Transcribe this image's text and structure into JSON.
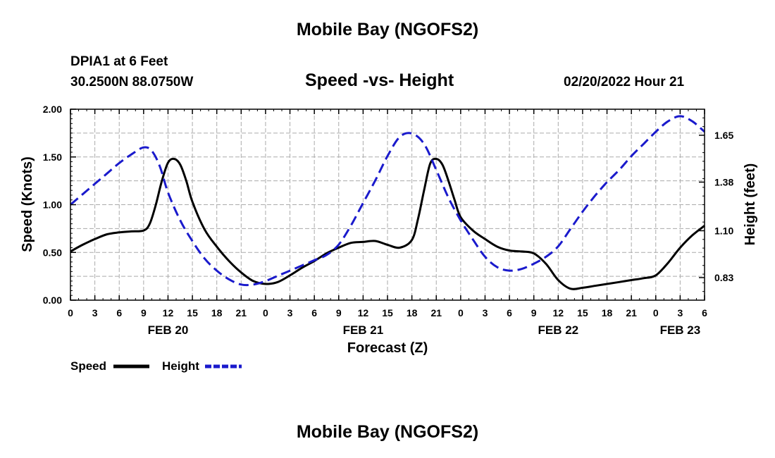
{
  "header": {
    "title": "Mobile Bay (NGOFS2)",
    "station": "DPIA1 at 6 Feet",
    "coords": "30.2500N  88.0750W",
    "chart_title": "Speed -vs- Height",
    "datetime": "02/20/2022 Hour 21",
    "bottom_title": "Mobile Bay (NGOFS2)"
  },
  "colors": {
    "speed": "#000000",
    "height": "#1a1acc",
    "grid": "#aaaaaa"
  },
  "chart_data": {
    "type": "line",
    "title": "Speed -vs- Height",
    "xlabel": "Forecast (Z)",
    "ylabel": "Speed (Knots)",
    "y2label": "Height (feet)",
    "x_unit": "hours since 2022-02-20 00Z",
    "xlim": [
      0,
      78
    ],
    "ylim": [
      0,
      2
    ],
    "y2lim": [
      0.7,
      1.8
    ],
    "y_ticks": [
      0,
      0.5,
      1.0,
      1.5,
      2.0
    ],
    "y_tick_labels": [
      "0.00",
      "0.50",
      "1.00",
      "1.50",
      "2.00"
    ],
    "y2_ticks": [
      0.83,
      1.1,
      1.38,
      1.65
    ],
    "y2_tick_labels": [
      "0.83",
      "1.10",
      "1.38",
      "1.65"
    ],
    "x_ticks": [
      0,
      3,
      6,
      9,
      12,
      15,
      18,
      21,
      24,
      27,
      30,
      33,
      36,
      39,
      42,
      45,
      48,
      51,
      54,
      57,
      60,
      63,
      66,
      69,
      72,
      75,
      78
    ],
    "x_tick_labels": [
      "0",
      "3",
      "6",
      "9",
      "12",
      "15",
      "18",
      "21",
      "0",
      "3",
      "6",
      "9",
      "12",
      "15",
      "18",
      "21",
      "0",
      "3",
      "6",
      "9",
      "12",
      "15",
      "18",
      "21",
      "0",
      "3",
      "6"
    ],
    "date_labels": [
      {
        "x": 12,
        "label": "FEB 20"
      },
      {
        "x": 36,
        "label": "FEB 21"
      },
      {
        "x": 60,
        "label": "FEB 22"
      },
      {
        "x": 75,
        "label": "FEB 23"
      }
    ],
    "legend": [
      {
        "name": "Speed",
        "style": "solid"
      },
      {
        "name": "Height",
        "style": "dashed"
      }
    ],
    "series": [
      {
        "name": "Speed",
        "axis": "left",
        "style": "solid",
        "x": [
          0,
          1.5,
          3,
          4.5,
          6,
          7.5,
          9,
          9.75,
          10.5,
          11.25,
          12,
          12.75,
          13.5,
          14.25,
          15,
          16.5,
          18,
          19.5,
          21,
          22.5,
          24,
          25.5,
          27,
          28.5,
          30,
          31.5,
          33,
          34.5,
          36,
          37.5,
          39,
          40.5,
          42,
          42.75,
          43.5,
          44.25,
          45,
          45.75,
          46.5,
          47.25,
          48,
          49.5,
          51,
          52.5,
          54,
          55.5,
          57,
          58.5,
          60,
          61.5,
          63,
          64.5,
          66,
          67.5,
          69,
          70.5,
          72,
          73.5,
          75,
          76.5,
          78
        ],
        "values": [
          0.51,
          0.58,
          0.64,
          0.69,
          0.71,
          0.72,
          0.73,
          0.8,
          1.0,
          1.25,
          1.44,
          1.48,
          1.42,
          1.25,
          1.03,
          0.74,
          0.56,
          0.41,
          0.29,
          0.2,
          0.17,
          0.19,
          0.26,
          0.34,
          0.41,
          0.49,
          0.55,
          0.6,
          0.61,
          0.62,
          0.58,
          0.55,
          0.63,
          0.85,
          1.15,
          1.43,
          1.48,
          1.42,
          1.25,
          1.05,
          0.87,
          0.73,
          0.64,
          0.56,
          0.52,
          0.51,
          0.49,
          0.38,
          0.21,
          0.12,
          0.13,
          0.15,
          0.17,
          0.19,
          0.21,
          0.23,
          0.26,
          0.39,
          0.55,
          0.68,
          0.78
        ]
      },
      {
        "name": "Height",
        "axis": "right",
        "style": "dashed",
        "x": [
          0,
          1.5,
          3,
          4.5,
          6,
          7.5,
          9,
          10,
          11,
          12,
          13.5,
          15,
          16.5,
          18,
          19.5,
          21,
          22.5,
          24,
          25.5,
          27,
          28.5,
          30,
          31.5,
          33,
          34.5,
          36,
          37.5,
          39,
          40.5,
          42,
          43.5,
          45,
          46.5,
          48,
          49.5,
          51,
          52.5,
          54,
          55.5,
          57,
          58.5,
          60,
          61.5,
          63,
          64.5,
          66,
          67.5,
          69,
          70.5,
          72,
          73.5,
          75,
          76.5,
          78
        ],
        "values": [
          1.25,
          1.31,
          1.37,
          1.43,
          1.49,
          1.54,
          1.58,
          1.56,
          1.47,
          1.32,
          1.16,
          1.04,
          0.94,
          0.87,
          0.82,
          0.79,
          0.79,
          0.81,
          0.84,
          0.87,
          0.9,
          0.93,
          0.96,
          1.02,
          1.13,
          1.26,
          1.39,
          1.53,
          1.64,
          1.66,
          1.6,
          1.45,
          1.29,
          1.16,
          1.05,
          0.95,
          0.89,
          0.87,
          0.88,
          0.91,
          0.95,
          1.01,
          1.11,
          1.21,
          1.3,
          1.38,
          1.45,
          1.53,
          1.6,
          1.67,
          1.73,
          1.76,
          1.73,
          1.67
        ]
      }
    ]
  }
}
